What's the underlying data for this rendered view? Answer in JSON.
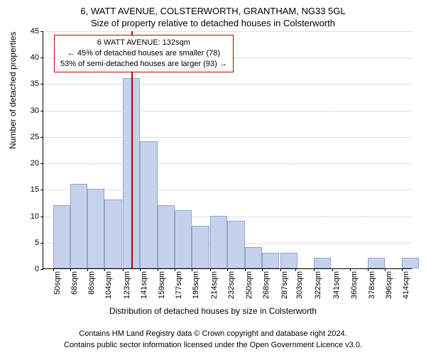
{
  "title_line1": "6, WATT AVENUE, COLSTERWORTH, GRANTHAM, NG33 5GL",
  "title_line2": "Size of property relative to detached houses in Colsterworth",
  "annotation": {
    "line1": "6 WATT AVENUE: 132sqm",
    "line2": "← 45% of detached houses are smaller (78)",
    "line3": "53% of semi-detached houses are larger (93) →",
    "border_color": "#c00000"
  },
  "chart": {
    "type": "histogram",
    "ylabel": "Number of detached properties",
    "xlabel": "Distribution of detached houses by size in Colsterworth",
    "background_color": "#ffffff",
    "bar_fill": "#c6d2ec",
    "bar_stroke": "#8ea4d2",
    "grid_color": "#c0c0c0",
    "xlim": [
      40,
      425
    ],
    "ylim": [
      0,
      45
    ],
    "ytick_step": 5,
    "yticks": [
      0,
      5,
      10,
      15,
      20,
      25,
      30,
      35,
      40,
      45
    ],
    "xticks": [
      50,
      68,
      86,
      104,
      123,
      141,
      159,
      177,
      195,
      214,
      232,
      250,
      268,
      287,
      303,
      322,
      341,
      360,
      378,
      396,
      414
    ],
    "xtick_suffix": "sqm",
    "marker_value": 132,
    "marker_color": "#c00000",
    "bar_bin_width": 18,
    "bars": [
      {
        "x0": 50,
        "v": 12
      },
      {
        "x0": 68,
        "v": 16
      },
      {
        "x0": 86,
        "v": 15
      },
      {
        "x0": 104,
        "v": 13
      },
      {
        "x0": 123,
        "v": 36
      },
      {
        "x0": 141,
        "v": 24
      },
      {
        "x0": 159,
        "v": 12
      },
      {
        "x0": 177,
        "v": 11
      },
      {
        "x0": 195,
        "v": 8
      },
      {
        "x0": 214,
        "v": 10
      },
      {
        "x0": 232,
        "v": 9
      },
      {
        "x0": 250,
        "v": 4
      },
      {
        "x0": 268,
        "v": 3
      },
      {
        "x0": 287,
        "v": 3
      },
      {
        "x0": 303,
        "v": 0
      },
      {
        "x0": 322,
        "v": 2
      },
      {
        "x0": 341,
        "v": 0
      },
      {
        "x0": 360,
        "v": 0
      },
      {
        "x0": 378,
        "v": 2
      },
      {
        "x0": 396,
        "v": 0
      },
      {
        "x0": 414,
        "v": 2
      }
    ],
    "title_fontsize": 13,
    "label_fontsize": 12,
    "tick_fontsize": 11
  },
  "footer": {
    "line1": "Contains HM Land Registry data © Crown copyright and database right 2024.",
    "line2": "Contains public sector information licensed under the Open Government Licence v3.0."
  }
}
